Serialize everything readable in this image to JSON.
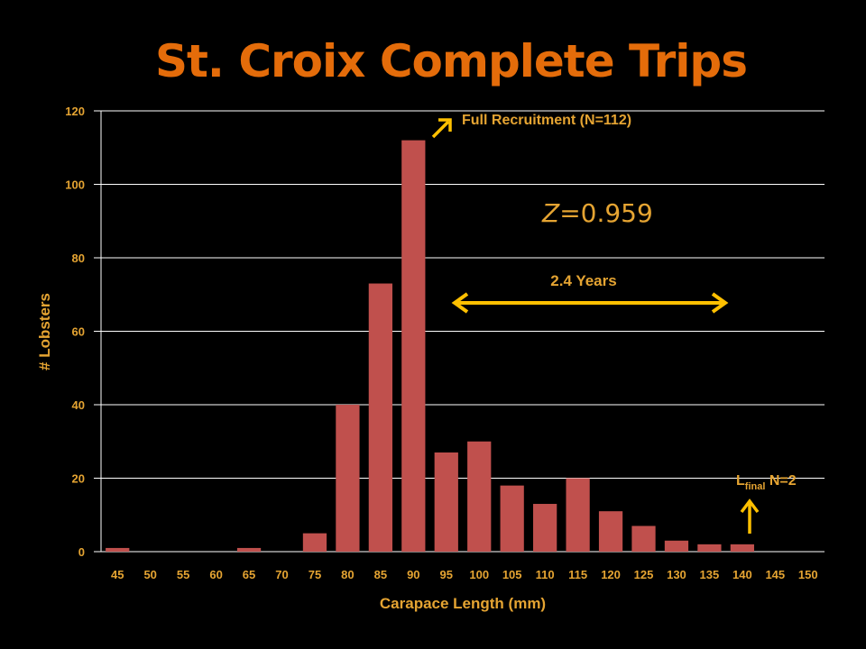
{
  "title": "St. Croix Complete Trips",
  "colors": {
    "bar": "#C0504D",
    "accent": "#E5A432",
    "title": "#E46C0A",
    "grid": "#FFFFFF",
    "arrow": "#FFC000"
  },
  "annotations": {
    "full_recruitment": "Full Recruitment (N=112)",
    "z_italic": "Z",
    "z_value": "=0.959",
    "years": "2.4 Years",
    "lfinal_main": "L",
    "lfinal_sub": "final",
    "lfinal_n": " N=2"
  },
  "chart_data": {
    "type": "bar",
    "xlabel": "Carapace Length (mm)",
    "ylabel": "# Lobsters",
    "ylim": [
      0,
      120
    ],
    "yticks": [
      0,
      20,
      40,
      60,
      80,
      100,
      120
    ],
    "grid": true,
    "categories": [
      "45",
      "50",
      "55",
      "60",
      "65",
      "70",
      "75",
      "80",
      "85",
      "90",
      "95",
      "100",
      "105",
      "110",
      "115",
      "120",
      "125",
      "130",
      "135",
      "140",
      "145",
      "150"
    ],
    "values": [
      1,
      0,
      0,
      0,
      1,
      0,
      5,
      40,
      73,
      112,
      27,
      30,
      18,
      13,
      20,
      11,
      7,
      3,
      2,
      2,
      0,
      0
    ]
  }
}
